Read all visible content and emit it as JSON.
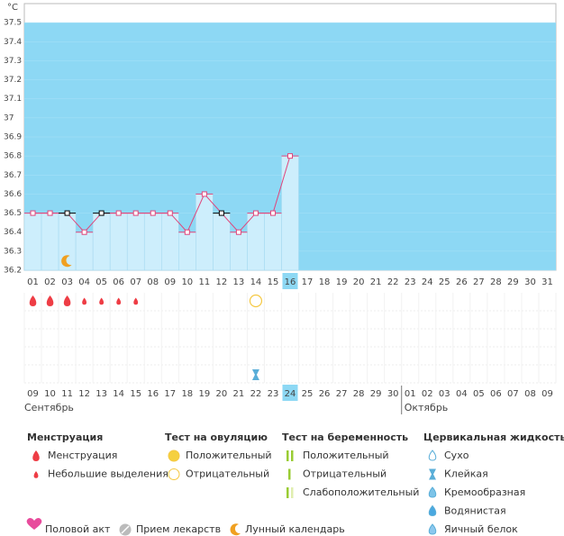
{
  "chart_data": {
    "type": "line",
    "unit": "°C",
    "categories": [
      "01",
      "02",
      "03",
      "04",
      "05",
      "06",
      "07",
      "08",
      "09",
      "10",
      "11",
      "12",
      "13",
      "14",
      "15",
      "16",
      "17",
      "18",
      "19",
      "20",
      "21",
      "22",
      "23",
      "24",
      "25",
      "26",
      "27",
      "28",
      "29",
      "30",
      "31"
    ],
    "series": [
      {
        "color": "#e0457b",
        "values": [
          36.5,
          36.5,
          36.5,
          36.4,
          36.5,
          36.5,
          36.5,
          36.5,
          36.5,
          36.4,
          36.6,
          36.5,
          36.4,
          36.5,
          36.5,
          36.8,
          null,
          null,
          null,
          null,
          null,
          null,
          null,
          null,
          null,
          null,
          null,
          null,
          null,
          null,
          null
        ]
      }
    ],
    "alt_marker_days": [
      "03",
      "05",
      "12"
    ],
    "alt_marker_color": "#000000",
    "ylim": [
      36.2,
      37.6
    ],
    "yticks": [
      36.2,
      36.3,
      36.4,
      36.5,
      36.6,
      36.7,
      36.8,
      36.9,
      37,
      37.1,
      37.2,
      37.3,
      37.4,
      37.5
    ],
    "highlight_category": "16",
    "highlight_date": "24",
    "dates": [
      "09",
      "10",
      "11",
      "12",
      "13",
      "14",
      "15",
      "16",
      "17",
      "18",
      "19",
      "20",
      "21",
      "22",
      "23",
      "24",
      "25",
      "26",
      "27",
      "28",
      "29",
      "30",
      "01",
      "02",
      "03",
      "04",
      "05",
      "06",
      "07",
      "08",
      "09"
    ],
    "red_dates": [
      1,
      2,
      8,
      9,
      15,
      16,
      22,
      23,
      29,
      30
    ],
    "months": [
      {
        "label": "Сентябрь",
        "start": 0
      },
      {
        "label": "Октябрь",
        "start": 22
      }
    ],
    "heavy_days": [
      "01",
      "02",
      "03"
    ],
    "light_days": [
      "04",
      "05",
      "06",
      "07"
    ],
    "moon_day": "03",
    "ovulation_negative_day": "14",
    "sticky_day": "14"
  },
  "legend": {
    "groups": [
      {
        "title": "Менструация",
        "items": [
          "Менструация",
          "Небольшие выделения"
        ]
      },
      {
        "title": "Тест на овуляцию",
        "items": [
          "Положительный",
          "Отрицательный"
        ]
      },
      {
        "title": "Тест на беременность",
        "items": [
          "Положительный",
          "Отрицательный",
          "Слабоположительный"
        ]
      },
      {
        "title": "Цервикальная жидкость",
        "items": [
          "Сухо",
          "Клейкая",
          "Кремообразная",
          "Водянистая",
          "Яичный белок"
        ]
      }
    ],
    "bottom": [
      "Половой акт",
      "Прием лекарств",
      "Лунный календарь"
    ]
  }
}
